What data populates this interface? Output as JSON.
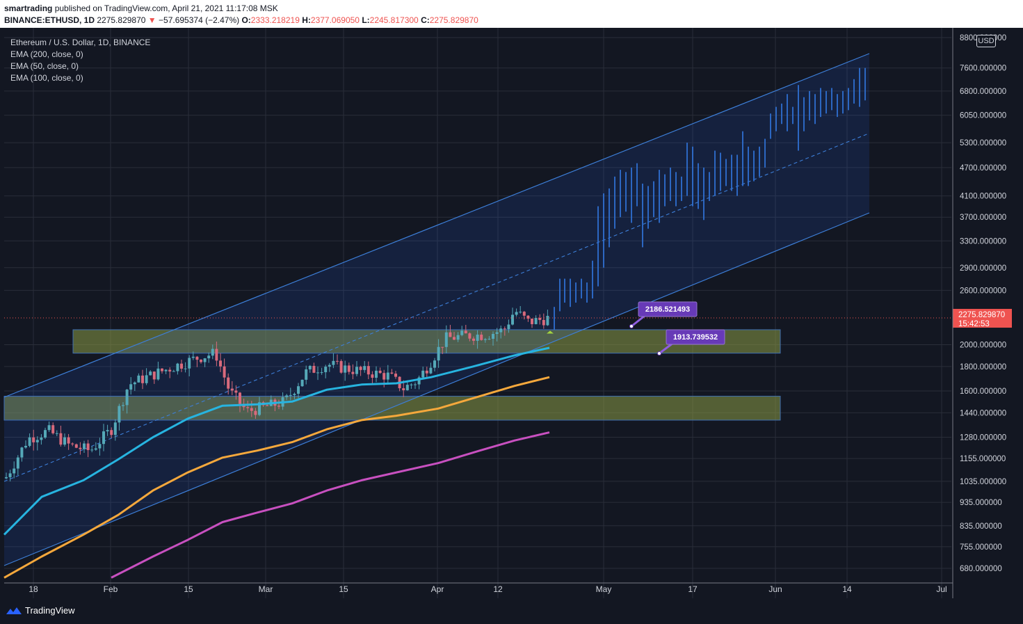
{
  "header": {
    "author": "smartrading",
    "published": "published on TradingView.com, April 21, 2021 11:17:08 MSK",
    "symbol": "BINANCE:ETHUSD, 1D",
    "last": "2275.829870",
    "change": "−57.695374 (−2.47%)",
    "o_label": "O:",
    "o": "2333.218219",
    "h_label": "H:",
    "h": "2377.069050",
    "l_label": "L:",
    "l": "2245.817300",
    "c_label": "C:",
    "c": "2275.829870"
  },
  "legend": {
    "title": "Ethereum / U.S. Dollar, 1D, BINANCE",
    "ema200": "EMA (200, close, 0)",
    "ema50": "EMA (50, close, 0)",
    "ema100": "EMA (100, close, 0)"
  },
  "currency": "USD",
  "brand": "TradingView",
  "colors": {
    "background": "#131722",
    "up": "#26a69a",
    "down": "#ef5350",
    "channel": "#2962ff",
    "ema50": "#27b4e0",
    "ema100": "#f5a83c",
    "ema200": "#c850c0",
    "zone": "#8a9a46",
    "label": "#673ab7",
    "price_tag": "#ef5350"
  },
  "chart_data": {
    "type": "candlestick",
    "title": "Ethereum / U.S. Dollar, 1D, BINANCE",
    "y_scale": "log",
    "ylim": [
      650,
      8800
    ],
    "price_axis_ticks": [
      "8800.000000",
      "7600.000000",
      "6800.000000",
      "6050.000000",
      "5300.000000",
      "4700.000000",
      "4100.000000",
      "3700.000000",
      "3300.000000",
      "2900.000000",
      "2600.000000",
      "2000.000000",
      "1800.000000",
      "1600.000000",
      "1440.000000",
      "1280.000000",
      "1155.000000",
      "1035.000000",
      "935.000000",
      "835.000000",
      "755.000000",
      "680.000000"
    ],
    "time_axis_ticks": [
      "18",
      "Feb",
      "15",
      "Mar",
      "15",
      "Apr",
      "12",
      "May",
      "17",
      "Jun",
      "14",
      "Jul"
    ],
    "current_price": "2275.829870",
    "countdown": "15:42:53",
    "price_labels": [
      "2186.521493",
      "1913.739532"
    ],
    "support_zones": [
      {
        "from": 1920,
        "to": 2150
      },
      {
        "from": 1390,
        "to": 1560
      }
    ],
    "ema_series": [
      {
        "name": "EMA (50, close, 0)",
        "color": "#27b4e0",
        "end_value": 1970
      },
      {
        "name": "EMA (100, close, 0)",
        "color": "#f5a83c",
        "end_value": 1710
      },
      {
        "name": "EMA (200, close, 0)",
        "color": "#c850c0",
        "end_value": 1310
      }
    ],
    "grid": true,
    "legend_position": "top-left"
  }
}
